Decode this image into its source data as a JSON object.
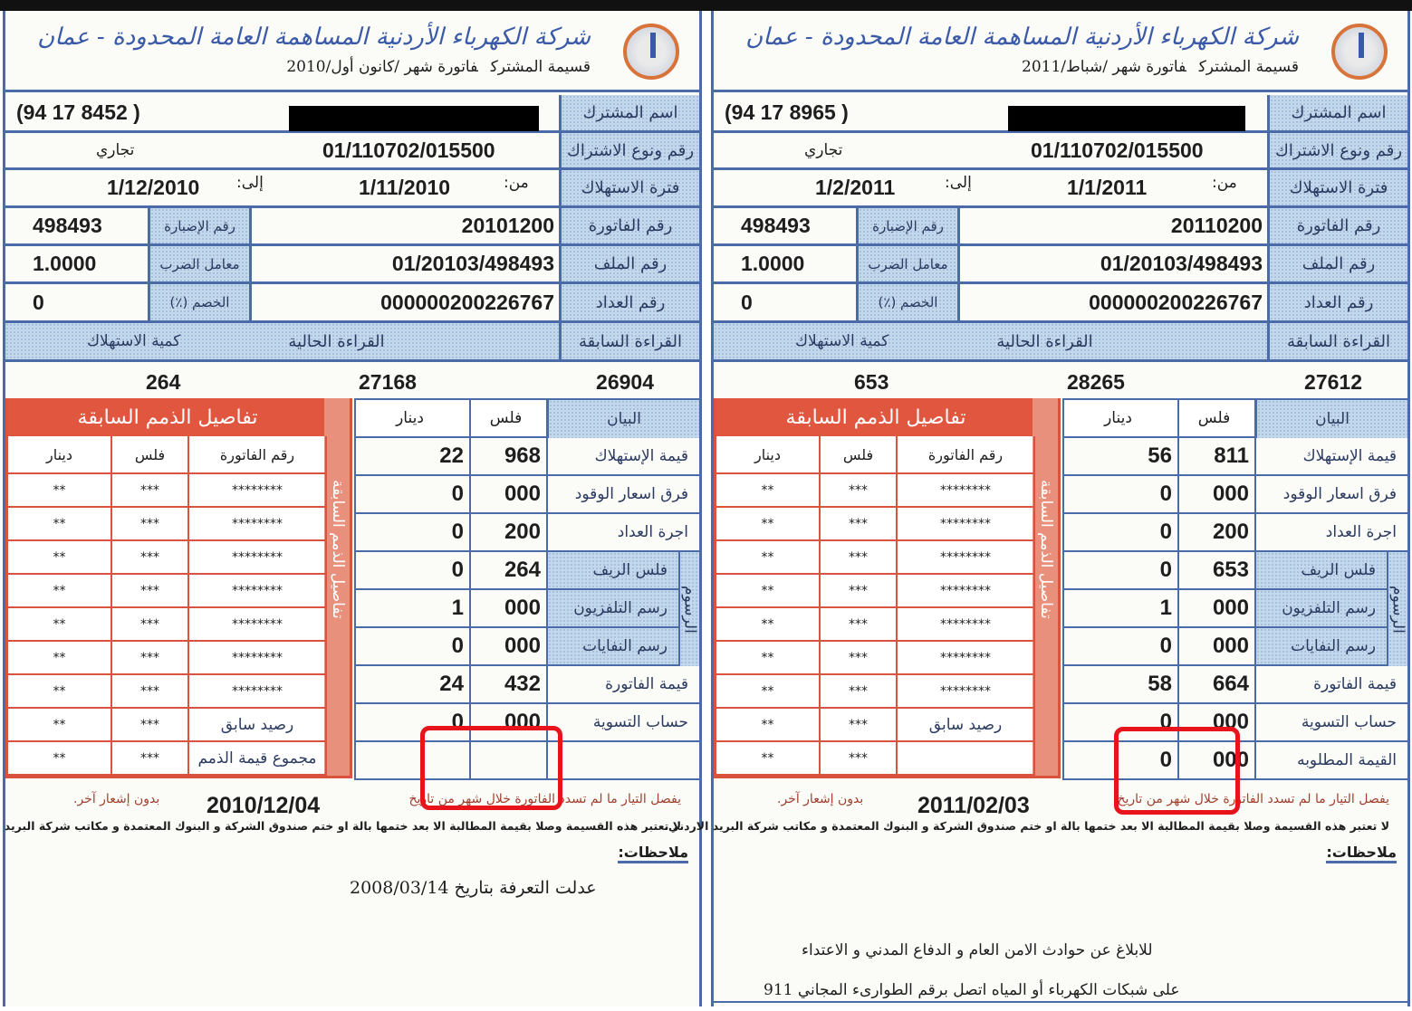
{
  "labels": {
    "name": "اسم المشترك",
    "subscription": "رقم ونوع الاشتراك",
    "period": "فترة الاستهلاك",
    "invoice": "رقم الفاتورة",
    "file": "رقم الملف",
    "meter": "رقم العداد",
    "from": "من:",
    "to": "إلى:",
    "building": "رقم الإضبارة",
    "multiplier": "معامل الضرب",
    "discount": "الخصم (٪)",
    "previous_reading": "القراءة السابقة",
    "current_reading": "القراءة الحالية",
    "consumption": "كمية الاستهلاك",
    "prior_debts_title": "تفاصيل الذمم السابقة",
    "debt_columns": [
      "دينار",
      "فلس",
      "رقم الفاتورة"
    ],
    "charges_columns": [
      "دينار",
      "فلس",
      "البيان"
    ],
    "fees_group": "الرسوم",
    "subscriber_copy": "قسيمة المشترك",
    "notes_title": "ملاحظات:",
    "cutoff_note": "يفصل التيار ما لم تسدد الفاتورة خلال شهر من تاريخ",
    "no_notice": "بدون إشعار آخر.",
    "receipt_note": "لا تعتبر هذه القسيمة وصلا بقيمة المطالبة الا بعد ختمها بالة او ختم صندوق الشركة و البنوك المعتمدة و مكاتب شركة البريد الاردني."
  },
  "bills": [
    {
      "company": "شركة الكهرباء الأردنية المساهمة العامة المحدودة - عمان",
      "month": "فاتورة شهر /كانون أول/2010",
      "phone": "(94 17 8452 )",
      "subscription_no": "01/110702/015500",
      "subscription_type": "تجاري",
      "period_from": "1/11/2010",
      "period_to": "1/12/2010",
      "invoice_no": "20101200",
      "building_no": "498493",
      "file_no": "01/20103/498493",
      "multiplier": "1.0000",
      "meter_no": "000000200226767",
      "discount": "0",
      "previous_reading": "26904",
      "current_reading": "27168",
      "consumption": "264",
      "charges": [
        {
          "label": "قيمة الإستهلاك",
          "fils": "968",
          "dinar": "22"
        },
        {
          "label": "فرق اسعار الوقود",
          "fils": "000",
          "dinar": "0"
        },
        {
          "label": "اجرة العداد",
          "fils": "200",
          "dinar": "0"
        },
        {
          "label": "فلس الريف",
          "fils": "264",
          "dinar": "0"
        },
        {
          "label": "رسم التلفزيون",
          "fils": "000",
          "dinar": "1"
        },
        {
          "label": "رسم النفايات",
          "fils": "000",
          "dinar": "0"
        },
        {
          "label": "قيمة الفاتورة",
          "fils": "432",
          "dinar": "24"
        },
        {
          "label": "حساب التسوية",
          "fils": "000",
          "dinar": "0"
        },
        {
          "label": "",
          "fils": "",
          "dinar": ""
        }
      ],
      "debts": [
        {
          "invoice": "********",
          "fils": "***",
          "dinar": "**"
        },
        {
          "invoice": "********",
          "fils": "***",
          "dinar": "**"
        },
        {
          "invoice": "********",
          "fils": "***",
          "dinar": "**"
        },
        {
          "invoice": "********",
          "fils": "***",
          "dinar": "**"
        },
        {
          "invoice": "********",
          "fils": "***",
          "dinar": "**"
        },
        {
          "invoice": "********",
          "fils": "***",
          "dinar": "**"
        },
        {
          "invoice": "********",
          "fils": "***",
          "dinar": "**"
        },
        {
          "invoice": "رصيد سابق",
          "fils": "***",
          "dinar": "**"
        },
        {
          "invoice": "مجموع قيمة الذمم",
          "fils": "***",
          "dinar": "**"
        }
      ],
      "issue_date": "2010/12/04",
      "notes": [
        "عدلت التعرفة بتاريخ 2008/03/14"
      ]
    },
    {
      "company": "شركة الكهرباء الأردنية المساهمة العامة المحدودة - عمان",
      "month": "فاتورة شهر /شباط/2011",
      "phone": "(94 17 8965 )",
      "subscription_no": "01/110702/015500",
      "subscription_type": "تجاري",
      "period_from": "1/1/2011",
      "period_to": "1/2/2011",
      "invoice_no": "20110200",
      "building_no": "498493",
      "file_no": "01/20103/498493",
      "multiplier": "1.0000",
      "meter_no": "000000200226767",
      "discount": "0",
      "previous_reading": "27612",
      "current_reading": "28265",
      "consumption": "653",
      "charges": [
        {
          "label": "قيمة الإستهلاك",
          "fils": "811",
          "dinar": "56"
        },
        {
          "label": "فرق اسعار الوقود",
          "fils": "000",
          "dinar": "0"
        },
        {
          "label": "اجرة العداد",
          "fils": "200",
          "dinar": "0"
        },
        {
          "label": "فلس الريف",
          "fils": "653",
          "dinar": "0"
        },
        {
          "label": "رسم التلفزيون",
          "fils": "000",
          "dinar": "1"
        },
        {
          "label": "رسم النفايات",
          "fils": "000",
          "dinar": "0"
        },
        {
          "label": "قيمة الفاتورة",
          "fils": "664",
          "dinar": "58"
        },
        {
          "label": "حساب التسوية",
          "fils": "000",
          "dinar": "0"
        },
        {
          "label": "القيمة المطلوبه",
          "fils": "000",
          "dinar": "0"
        }
      ],
      "debts": [
        {
          "invoice": "********",
          "fils": "***",
          "dinar": "**"
        },
        {
          "invoice": "********",
          "fils": "***",
          "dinar": "**"
        },
        {
          "invoice": "********",
          "fils": "***",
          "dinar": "**"
        },
        {
          "invoice": "********",
          "fils": "***",
          "dinar": "**"
        },
        {
          "invoice": "********",
          "fils": "***",
          "dinar": "**"
        },
        {
          "invoice": "********",
          "fils": "***",
          "dinar": "**"
        },
        {
          "invoice": "********",
          "fils": "***",
          "dinar": "**"
        },
        {
          "invoice": "رصيد سابق",
          "fils": "***",
          "dinar": "**"
        },
        {
          "invoice": "",
          "fils": "***",
          "dinar": "**"
        }
      ],
      "issue_date": "2011/02/03",
      "notes": [
        "للابلاغ عن حوادث الامن العام و الدفاع المدني و الاعتداء",
        "على شبكات الكهرباء أو المياه اتصل برقم الطوارىء المجاني 911"
      ]
    }
  ],
  "colors": {
    "label_blue": "#c4d8ec",
    "border_blue": "#4a6aa8",
    "debt_red": "#e0563e",
    "highlight_red": "#e8141c"
  }
}
